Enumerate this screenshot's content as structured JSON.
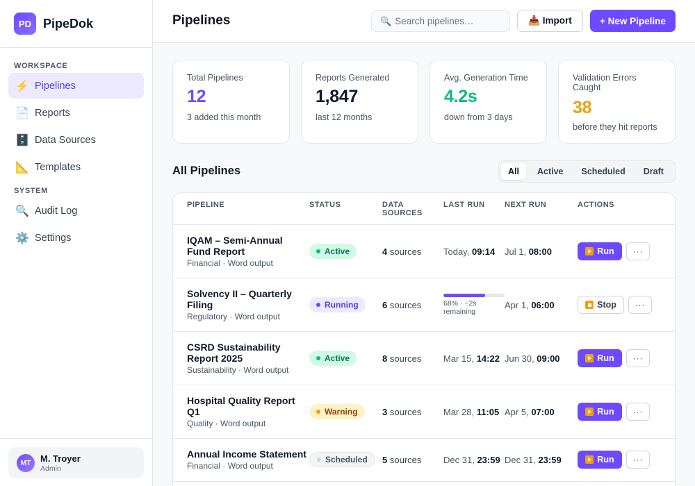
{
  "brand": {
    "logo": "PD",
    "name": "PipeDok"
  },
  "sidebar": {
    "sections": [
      {
        "title": "WORKSPACE"
      },
      {
        "title": "SYSTEM"
      }
    ],
    "items": [
      {
        "icon": "⚡",
        "label": "Pipelines",
        "icon_name": "lightning-icon"
      },
      {
        "icon": "📄",
        "label": "Reports",
        "icon_name": "document-icon"
      },
      {
        "icon": "🗄️",
        "label": "Data Sources",
        "icon_name": "file-cabinet-icon"
      },
      {
        "icon": "📐",
        "label": "Templates",
        "icon_name": "ruler-icon"
      },
      {
        "icon": "🔍",
        "label": "Audit Log",
        "icon_name": "magnifier-icon"
      },
      {
        "icon": "⚙️",
        "label": "Settings",
        "icon_name": "gear-icon"
      }
    ],
    "user": {
      "initials": "MT",
      "name": "M. Troyer",
      "role": "Admin"
    }
  },
  "header": {
    "title": "Pipelines",
    "search_placeholder": "Search pipelines…",
    "import_label": "📥 Import",
    "new_label": "+ New Pipeline"
  },
  "stats": [
    {
      "label": "Total Pipelines",
      "value": "12",
      "sub": "3 added this month",
      "color": "#6d4aff"
    },
    {
      "label": "Reports Generated",
      "value": "1,847",
      "sub": "last 12 months",
      "color": "#111827"
    },
    {
      "label": "Avg. Generation Time",
      "value": "4.2s",
      "sub": "down from 3 days",
      "color": "#10b981"
    },
    {
      "label": "Validation Errors Caught",
      "value": "38",
      "sub": "before they hit reports",
      "color": "#f59e0b"
    }
  ],
  "list": {
    "title": "All Pipelines",
    "filters": [
      "All",
      "Active",
      "Scheduled",
      "Draft"
    ],
    "active_filter": "All"
  },
  "table": {
    "headers": [
      "PIPELINE",
      "STATUS",
      "DATA SOURCES",
      "LAST RUN",
      "NEXT RUN",
      "ACTIONS"
    ],
    "rows": [
      {
        "name": "IQAM – Semi-Annual Fund Report",
        "meta": "Financial · Word output",
        "status": "Active",
        "sources_count": "4",
        "sources_label": "sources",
        "last_date": "Today,",
        "last_time": "09:14",
        "next_date": "Jul 1,",
        "next_time": "08:00",
        "action": "Run"
      },
      {
        "name": "Solvency II – Quarterly Filing",
        "meta": "Regulatory · Word output",
        "status": "Running",
        "sources_count": "6",
        "sources_label": "sources",
        "progress": 0.68,
        "progress_text": "68% · ~2s remaining",
        "next_date": "Apr 1,",
        "next_time": "06:00",
        "action": "Stop"
      },
      {
        "name": "CSRD Sustainability Report 2025",
        "meta": "Sustainability · Word output",
        "status": "Active",
        "sources_count": "8",
        "sources_label": "sources",
        "last_date": "Mar 15,",
        "last_time": "14:22",
        "next_date": "Jun 30,",
        "next_time": "09:00",
        "action": "Run"
      },
      {
        "name": "Hospital Quality Report Q1",
        "meta": "Quality · Word output",
        "status": "Warning",
        "sources_count": "3",
        "sources_label": "sources",
        "last_date": "Mar 28,",
        "last_time": "11:05",
        "next_date": "Apr 5,",
        "next_time": "07:00",
        "action": "Run"
      },
      {
        "name": "Annual Income Statement",
        "meta": "Financial · Word output",
        "status": "Scheduled",
        "sources_count": "5",
        "sources_label": "sources",
        "last_date": "Dec 31,",
        "last_time": "23:59",
        "next_date": "Dec 31,",
        "next_time": "23:59",
        "action": "Run"
      }
    ],
    "more_label": "···"
  }
}
